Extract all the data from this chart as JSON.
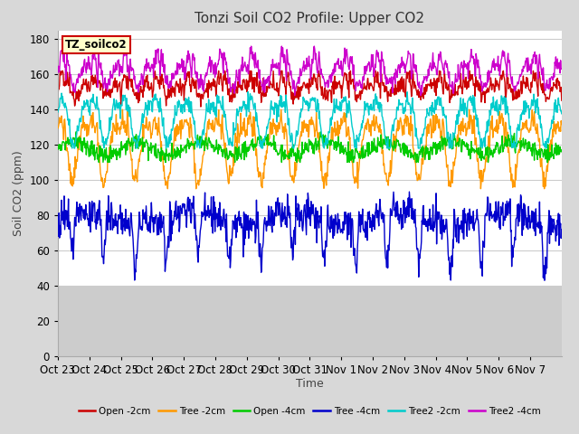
{
  "title": "Tonzi Soil CO2 Profile: Upper CO2",
  "ylabel": "Soil CO2 (ppm)",
  "xlabel": "Time",
  "legend_label": "TZ_soilco2",
  "ylim": [
    0,
    185
  ],
  "yticks": [
    0,
    20,
    40,
    60,
    80,
    100,
    120,
    140,
    160,
    180
  ],
  "data_floor": 40,
  "xtick_labels": [
    "Oct 23",
    "Oct 24",
    "Oct 25",
    "Oct 26",
    "Oct 27",
    "Oct 28",
    "Oct 29",
    "Oct 30",
    "Oct 31",
    "Nov 1",
    "Nov 2",
    "Nov 3",
    "Nov 4",
    "Nov 5",
    "Nov 6",
    "Nov 7"
  ],
  "series": [
    {
      "label": "Open -2cm",
      "color": "#cc0000",
      "lw": 1.0
    },
    {
      "label": "Tree -2cm",
      "color": "#ff9900",
      "lw": 1.0
    },
    {
      "label": "Open -4cm",
      "color": "#00cc00",
      "lw": 1.0
    },
    {
      "label": "Tree -4cm",
      "color": "#0000cc",
      "lw": 1.0
    },
    {
      "label": "Tree2 -2cm",
      "color": "#00cccc",
      "lw": 1.0
    },
    {
      "label": "Tree2 -4cm",
      "color": "#cc00cc",
      "lw": 1.0
    }
  ],
  "bg_color": "#d8d8d8",
  "plot_bg_color": "#ffffff",
  "plot_bg_lower_color": "#cccccc",
  "grid_color": "#cccccc",
  "title_fontsize": 11,
  "axis_fontsize": 9,
  "tick_fontsize": 8.5,
  "legend_box_color": "#ffffcc",
  "legend_box_edge": "#cc0000",
  "n_points": 960,
  "n_days": 16
}
